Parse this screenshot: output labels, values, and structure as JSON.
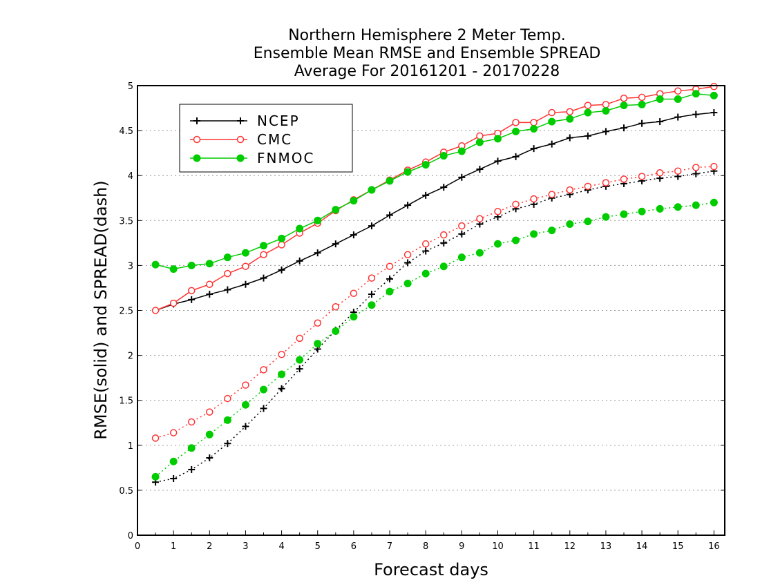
{
  "chart_data": {
    "type": "line",
    "title_lines": [
      "Northern Hemisphere 2 Meter Temp.",
      "Ensemble Mean RMSE and Ensemble SPREAD",
      "Average For 20161201 - 20170228"
    ],
    "xlabel": "Forecast days",
    "ylabel": "RMSE(solid) and SPREAD(dash)",
    "xlim": [
      0,
      16.3
    ],
    "ylim": [
      0,
      5
    ],
    "x_ticks": [
      "0",
      "1",
      "2",
      "3",
      "4",
      "5",
      "6",
      "7",
      "8",
      "9",
      "10",
      "11",
      "12",
      "13",
      "14",
      "15",
      "16"
    ],
    "y_ticks": [
      "0",
      "0.5",
      "1",
      "1.5",
      "2",
      "2.5",
      "3",
      "3.5",
      "4",
      "4.5",
      "5"
    ],
    "grid": "dotted horizontal",
    "legend_position": "top-left",
    "x": [
      0.5,
      1,
      1.5,
      2,
      2.5,
      3,
      3.5,
      4,
      4.5,
      5,
      5.5,
      6,
      6.5,
      7,
      7.5,
      8,
      8.5,
      9,
      9.5,
      10,
      10.5,
      11,
      11.5,
      12,
      12.5,
      13,
      13.5,
      14,
      14.5,
      15,
      15.5,
      16
    ],
    "series": [
      {
        "name": "NCEP",
        "kind": "rmse",
        "color": "#000000",
        "marker": "plus",
        "style": "solid",
        "values": [
          2.5,
          2.57,
          2.62,
          2.68,
          2.73,
          2.79,
          2.86,
          2.95,
          3.05,
          3.14,
          3.24,
          3.34,
          3.44,
          3.56,
          3.67,
          3.78,
          3.87,
          3.98,
          4.07,
          4.16,
          4.21,
          4.3,
          4.35,
          4.42,
          4.44,
          4.49,
          4.53,
          4.58,
          4.6,
          4.65,
          4.68,
          4.7
        ]
      },
      {
        "name": "CMC",
        "kind": "rmse",
        "color": "#ff3333",
        "marker": "open-circle",
        "style": "solid",
        "values": [
          2.5,
          2.58,
          2.72,
          2.79,
          2.91,
          2.99,
          3.12,
          3.23,
          3.36,
          3.47,
          3.61,
          3.73,
          3.84,
          3.95,
          4.06,
          4.15,
          4.26,
          4.33,
          4.44,
          4.47,
          4.59,
          4.59,
          4.7,
          4.71,
          4.78,
          4.79,
          4.86,
          4.87,
          4.91,
          4.94,
          4.96,
          4.99
        ]
      },
      {
        "name": "FNMOC",
        "kind": "rmse",
        "color": "#00cc00",
        "marker": "filled-circle",
        "style": "solid",
        "values": [
          3.01,
          2.96,
          3.0,
          3.02,
          3.09,
          3.14,
          3.22,
          3.3,
          3.41,
          3.5,
          3.62,
          3.72,
          3.84,
          3.94,
          4.04,
          4.12,
          4.22,
          4.27,
          4.37,
          4.41,
          4.49,
          4.52,
          4.6,
          4.63,
          4.7,
          4.72,
          4.78,
          4.79,
          4.85,
          4.85,
          4.91,
          4.89
        ]
      },
      {
        "name": "NCEP",
        "kind": "spread",
        "color": "#000000",
        "marker": "plus",
        "style": "dash",
        "values": [
          0.59,
          0.63,
          0.73,
          0.86,
          1.02,
          1.21,
          1.41,
          1.63,
          1.85,
          2.07,
          2.28,
          2.48,
          2.68,
          2.85,
          3.03,
          3.16,
          3.25,
          3.35,
          3.46,
          3.54,
          3.63,
          3.68,
          3.75,
          3.79,
          3.84,
          3.88,
          3.91,
          3.94,
          3.97,
          3.99,
          4.02,
          4.05
        ]
      },
      {
        "name": "CMC",
        "kind": "spread",
        "color": "#ff3333",
        "marker": "open-circle",
        "style": "dash",
        "values": [
          1.08,
          1.14,
          1.26,
          1.37,
          1.52,
          1.67,
          1.84,
          2.01,
          2.19,
          2.36,
          2.54,
          2.69,
          2.86,
          2.99,
          3.12,
          3.24,
          3.34,
          3.44,
          3.52,
          3.6,
          3.68,
          3.74,
          3.79,
          3.84,
          3.88,
          3.92,
          3.96,
          3.99,
          4.03,
          4.05,
          4.09,
          4.1
        ]
      },
      {
        "name": "FNMOC",
        "kind": "spread",
        "color": "#00cc00",
        "marker": "filled-circle",
        "style": "dash",
        "values": [
          0.65,
          0.82,
          0.97,
          1.12,
          1.28,
          1.45,
          1.62,
          1.79,
          1.95,
          2.13,
          2.27,
          2.43,
          2.56,
          2.71,
          2.8,
          2.91,
          2.99,
          3.09,
          3.14,
          3.24,
          3.28,
          3.35,
          3.39,
          3.46,
          3.49,
          3.54,
          3.57,
          3.6,
          3.63,
          3.65,
          3.67,
          3.7
        ]
      }
    ],
    "legend": [
      {
        "label": "NCEP",
        "color": "#000000",
        "marker": "plus"
      },
      {
        "label": "CMC",
        "color": "#ff3333",
        "marker": "open-circle"
      },
      {
        "label": "FNMOC",
        "color": "#00cc00",
        "marker": "filled-circle"
      }
    ]
  }
}
